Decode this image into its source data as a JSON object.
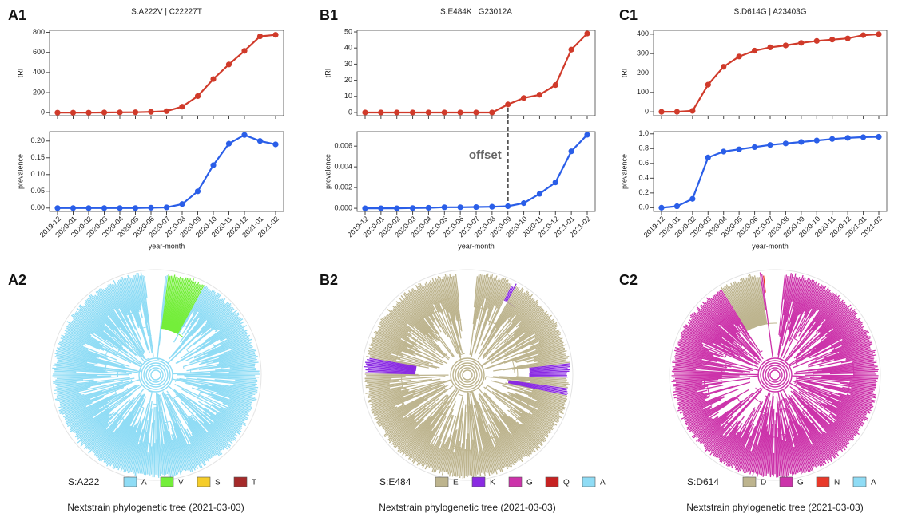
{
  "chart_data": [
    {
      "type": "line",
      "panel": "A1",
      "title": "S:A222V  |  C22227T",
      "ylabel": "tRI",
      "color": "#d03a2a",
      "values": [
        0,
        0,
        0,
        2,
        3,
        4,
        8,
        15,
        60,
        165,
        335,
        480,
        615,
        760,
        775
      ],
      "ylim": [
        -30,
        820
      ],
      "yticks": [
        0,
        200,
        400,
        600,
        800
      ]
    },
    {
      "type": "line",
      "ylabel": "prevalence",
      "xlabel": "year-month",
      "color": "#2a5ee8",
      "categories": [
        "2019-12",
        "2020-01",
        "2020-02",
        "2020-03",
        "2020-04",
        "2020-05",
        "2020-06",
        "2020-07",
        "2020-08",
        "2020-09",
        "2020-10",
        "2020-11",
        "2020-12",
        "2021-01",
        "2021-02"
      ],
      "values": [
        0,
        0,
        0,
        0,
        0,
        0,
        0.001,
        0.002,
        0.012,
        0.05,
        0.128,
        0.192,
        0.218,
        0.2,
        0.19
      ],
      "ylim": [
        -0.01,
        0.228
      ],
      "yticks": [
        {
          "value": 0,
          "label": "0.00"
        },
        {
          "value": 0.05,
          "label": "0.05"
        },
        {
          "value": 0.1,
          "label": "0.10"
        },
        {
          "value": 0.15,
          "label": "0.15"
        },
        {
          "value": 0.2,
          "label": "0.20"
        }
      ]
    },
    {
      "type": "line",
      "panel": "B1",
      "title": "S:E484K  |  G23012A",
      "ylabel": "tRI",
      "color": "#d03a2a",
      "values": [
        0,
        0,
        0,
        0,
        0,
        0,
        0,
        0,
        0,
        5,
        9,
        11,
        17,
        39,
        49
      ],
      "ylim": [
        -2,
        51
      ],
      "yticks": [
        0,
        10,
        20,
        30,
        40,
        50
      ]
    },
    {
      "type": "line",
      "ylabel": "prevalence",
      "xlabel": "year-month",
      "color": "#2a5ee8",
      "annotation": "offset",
      "categories": [
        "2019-12",
        "2020-01",
        "2020-02",
        "2020-03",
        "2020-04",
        "2020-05",
        "2020-06",
        "2020-07",
        "2020-08",
        "2020-09",
        "2020-10",
        "2020-11",
        "2020-12",
        "2021-01",
        "2021-02"
      ],
      "values": [
        0,
        0,
        0,
        2e-05,
        5e-05,
        0.0001,
        0.0001,
        0.00012,
        0.00015,
        0.0002,
        0.0005,
        0.0014,
        0.0025,
        0.0055,
        0.0071
      ],
      "ylim": [
        -0.0003,
        0.0074
      ],
      "yticks": [
        {
          "value": 0,
          "label": "0.000"
        },
        {
          "value": 0.002,
          "label": "0.002"
        },
        {
          "value": 0.004,
          "label": "0.004"
        },
        {
          "value": 0.006,
          "label": "0.006"
        }
      ]
    },
    {
      "type": "line",
      "panel": "C1",
      "title": "S:D614G  |  A23403G",
      "ylabel": "tRI",
      "color": "#d03a2a",
      "values": [
        0,
        0,
        5,
        140,
        232,
        285,
        315,
        332,
        342,
        355,
        365,
        372,
        378,
        395,
        400
      ],
      "ylim": [
        -20,
        420
      ],
      "yticks": [
        0,
        100,
        200,
        300,
        400
      ]
    },
    {
      "type": "line",
      "ylabel": "prevalence",
      "xlabel": "year-month",
      "color": "#2a5ee8",
      "categories": [
        "2019-12",
        "2020-01",
        "2020-02",
        "2020-03",
        "2020-04",
        "2020-05",
        "2020-06",
        "2020-07",
        "2020-08",
        "2020-09",
        "2020-10",
        "2020-11",
        "2020-12",
        "2021-01",
        "2021-02"
      ],
      "values": [
        0,
        0.02,
        0.12,
        0.68,
        0.76,
        0.79,
        0.82,
        0.85,
        0.87,
        0.89,
        0.91,
        0.93,
        0.945,
        0.955,
        0.96
      ],
      "ylim": [
        -0.05,
        1.03
      ],
      "yticks": [
        {
          "value": 0,
          "label": "0.0"
        },
        {
          "value": 0.2,
          "label": "0.2"
        },
        {
          "value": 0.4,
          "label": "0.4"
        },
        {
          "value": 0.6,
          "label": "0.6"
        },
        {
          "value": 0.8,
          "label": "0.8"
        },
        {
          "value": 1,
          "label": "1.0"
        }
      ]
    }
  ],
  "trees": [
    {
      "panel": "A2",
      "legend_title": "S:A222",
      "caption": "Nextstrain phylogenetic tree (2021-03-03)",
      "legend": [
        {
          "label": "A",
          "color": "#8fdcf5"
        },
        {
          "label": "V",
          "color": "#74ee3a"
        },
        {
          "label": "S",
          "color": "#f5cd2a"
        },
        {
          "label": "T",
          "color": "#a52a2a"
        }
      ]
    },
    {
      "panel": "B2",
      "legend_title": "S:E484",
      "caption": "Nextstrain phylogenetic tree (2021-03-03)",
      "legend": [
        {
          "label": "E",
          "color": "#bdb48e"
        },
        {
          "label": "K",
          "color": "#8a2be2"
        },
        {
          "label": "G",
          "color": "#cc33aa"
        },
        {
          "label": "Q",
          "color": "#c62222"
        },
        {
          "label": "A",
          "color": "#8fdcf5"
        }
      ]
    },
    {
      "panel": "C2",
      "legend_title": "S:D614",
      "caption": "Nextstrain phylogenetic tree (2021-03-03)",
      "legend": [
        {
          "label": "D",
          "color": "#bdb48e"
        },
        {
          "label": "G",
          "color": "#cc33aa"
        },
        {
          "label": "N",
          "color": "#e8392a"
        },
        {
          "label": "A",
          "color": "#8fdcf5"
        }
      ]
    }
  ]
}
